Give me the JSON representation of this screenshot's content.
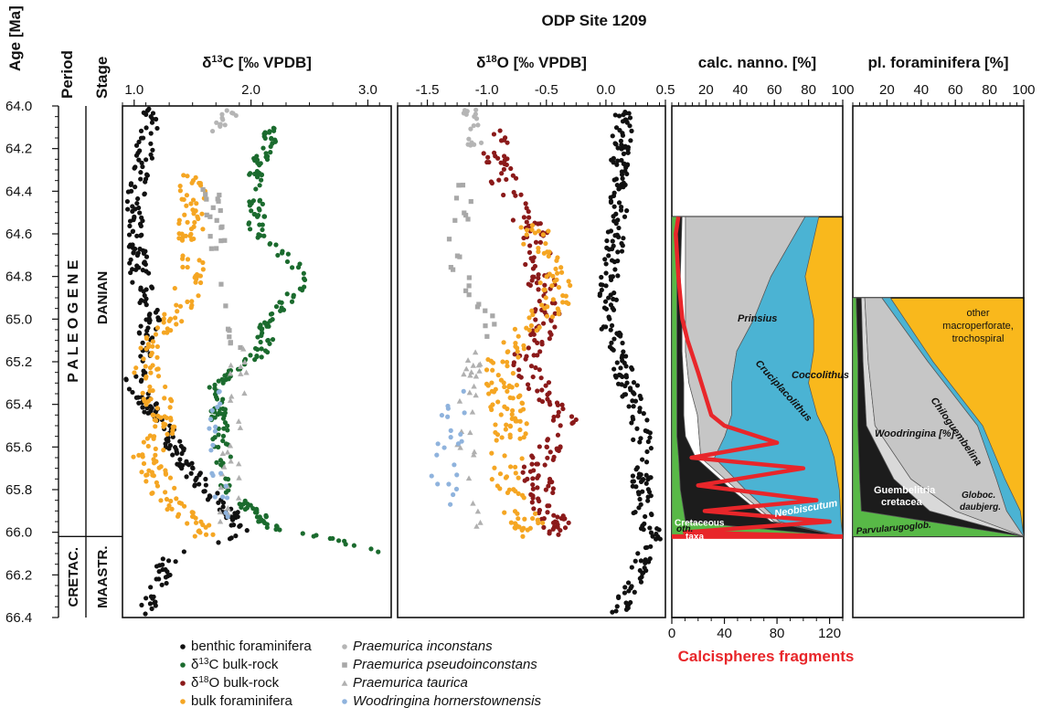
{
  "chart_data": {
    "type": "scatter",
    "title": "ODP Site 1209",
    "y_axis": {
      "label": "Age [Ma]",
      "range": [
        64.0,
        66.4
      ],
      "ticks": [
        "64.0",
        "64.2",
        "64.4",
        "64.6",
        "64.8",
        "65.0",
        "65.2",
        "65.4",
        "65.6",
        "65.8",
        "66.0",
        "66.2",
        "66.4"
      ],
      "boundary_age": 66.02
    },
    "period_header": "Period",
    "stage_header": "Stage",
    "periods": [
      {
        "name": "P A L E O G E N E",
        "from": 64.0,
        "to": 66.02
      },
      {
        "name": "CRETAC.",
        "from": 66.02,
        "to": 66.4
      }
    ],
    "stages": [
      {
        "name": "DANIAN",
        "from": 64.0,
        "to": 66.02
      },
      {
        "name": "MAASTR.",
        "from": 66.02,
        "to": 66.4
      }
    ],
    "panels": [
      {
        "id": "d13c",
        "header": "δ13C [‰ VPDB]",
        "range": [
          0.9,
          3.2
        ],
        "ticks": [
          "1.0",
          "2.0",
          "3.0"
        ],
        "series": [
          {
            "name": "benthic foraminifera",
            "color": "#111111",
            "marker": "circle",
            "trend": [
              [
                64.0,
                1.15
              ],
              [
                64.5,
                1.0
              ],
              [
                64.8,
                1.05
              ],
              [
                65.0,
                1.15
              ],
              [
                65.3,
                1.0
              ],
              [
                65.55,
                1.3
              ],
              [
                65.7,
                1.45
              ],
              [
                65.9,
                1.8
              ],
              [
                66.02,
                1.95
              ],
              [
                66.1,
                1.3
              ],
              [
                66.4,
                1.1
              ]
            ],
            "spread": 0.08,
            "range": [
              64.0,
              66.4
            ]
          },
          {
            "name": "δ13C bulk-rock",
            "color": "#1b6b2e",
            "marker": "circle",
            "trend": [
              [
                64.1,
                2.2
              ],
              [
                64.3,
                2.05
              ],
              [
                64.6,
                2.05
              ],
              [
                64.8,
                2.5
              ],
              [
                65.0,
                2.15
              ],
              [
                65.15,
                2.1
              ],
              [
                65.3,
                1.7
              ],
              [
                65.6,
                1.75
              ],
              [
                65.8,
                1.8
              ],
              [
                65.98,
                2.2
              ],
              [
                66.02,
                2.6
              ],
              [
                66.1,
                3.1
              ]
            ],
            "spread": 0.07,
            "range": [
              64.1,
              66.1
            ]
          },
          {
            "name": "bulk foraminifera",
            "color": "#f5a623",
            "marker": "circle",
            "trend": [
              [
                64.3,
                1.5
              ],
              [
                64.6,
                1.5
              ],
              [
                64.9,
                1.45
              ],
              [
                65.1,
                1.2
              ],
              [
                65.25,
                1.1
              ],
              [
                65.5,
                1.3
              ],
              [
                65.65,
                1.1
              ],
              [
                65.85,
                1.3
              ],
              [
                66.0,
                1.6
              ]
            ],
            "spread": 0.12,
            "range": [
              64.3,
              66.02
            ]
          },
          {
            "name": "Praemurica inconstans",
            "color": "#b5b5b5",
            "marker": "circle",
            "trend": [
              [
                64.0,
                1.85
              ],
              [
                64.1,
                1.75
              ]
            ],
            "spread": 0.08,
            "range": [
              64.0,
              64.12
            ]
          },
          {
            "name": "Praemurica pseudoinconstans",
            "color": "#a8a8a8",
            "marker": "square",
            "trend": [
              [
                64.3,
                1.65
              ],
              [
                64.8,
                1.75
              ],
              [
                65.1,
                1.85
              ]
            ],
            "spread": 0.08,
            "range": [
              64.3,
              65.15
            ]
          },
          {
            "name": "Praemurica taurica",
            "color": "#b0b0b0",
            "marker": "triangle",
            "trend": [
              [
                65.1,
                1.9
              ],
              [
                65.5,
                1.85
              ],
              [
                66.0,
                1.8
              ]
            ],
            "spread": 0.08,
            "range": [
              65.1,
              66.0
            ]
          },
          {
            "name": "Woodringina hornerstownensis",
            "color": "#8fb3dd",
            "marker": "circle",
            "trend": [
              [
                65.3,
                1.7
              ],
              [
                65.6,
                1.7
              ],
              [
                65.9,
                1.75
              ]
            ],
            "spread": 0.06,
            "range": [
              65.3,
              65.95
            ]
          }
        ]
      },
      {
        "id": "d18o",
        "header": "δ18O [‰ VPDB]",
        "range": [
          -1.75,
          0.5
        ],
        "ticks": [
          "-1.5",
          "-1.0",
          "-0.5",
          "0.0",
          "0.5"
        ],
        "series": [
          {
            "name": "benthic foraminifera",
            "color": "#111111",
            "marker": "circle",
            "trend": [
              [
                64.0,
                0.15
              ],
              [
                64.5,
                0.1
              ],
              [
                65.0,
                0.0
              ],
              [
                65.5,
                0.3
              ],
              [
                65.9,
                0.3
              ],
              [
                66.02,
                0.4
              ],
              [
                66.2,
                0.25
              ],
              [
                66.4,
                0.1
              ]
            ],
            "spread": 0.08,
            "range": [
              64.0,
              66.4
            ]
          },
          {
            "name": "δ18O bulk-rock",
            "color": "#8b1a1a",
            "marker": "circle",
            "trend": [
              [
                64.1,
                -0.95
              ],
              [
                64.4,
                -0.85
              ],
              [
                64.6,
                -0.6
              ],
              [
                64.8,
                -0.55
              ],
              [
                65.0,
                -0.5
              ],
              [
                65.2,
                -0.7
              ],
              [
                65.5,
                -0.3
              ],
              [
                65.7,
                -0.6
              ],
              [
                65.9,
                -0.5
              ],
              [
                66.02,
                -0.35
              ]
            ],
            "spread": 0.12,
            "range": [
              64.1,
              66.02
            ]
          },
          {
            "name": "bulk foraminifera",
            "color": "#f5a623",
            "marker": "circle",
            "trend": [
              [
                64.6,
                -0.6
              ],
              [
                64.9,
                -0.4
              ],
              [
                65.2,
                -0.9
              ],
              [
                65.5,
                -0.8
              ],
              [
                65.8,
                -0.85
              ],
              [
                66.0,
                -0.6
              ]
            ],
            "spread": 0.14,
            "range": [
              64.55,
              66.02
            ]
          },
          {
            "name": "Praemurica inconstans",
            "color": "#b5b5b5",
            "marker": "circle",
            "trend": [
              [
                64.0,
                -1.15
              ],
              [
                64.2,
                -1.1
              ]
            ],
            "spread": 0.06,
            "range": [
              64.0,
              64.2
            ]
          },
          {
            "name": "Praemurica pseudoinconstans",
            "color": "#a8a8a8",
            "marker": "square",
            "trend": [
              [
                64.3,
                -1.15
              ],
              [
                64.7,
                -1.3
              ],
              [
                65.05,
                -0.95
              ]
            ],
            "spread": 0.08,
            "range": [
              64.3,
              65.1
            ]
          },
          {
            "name": "Praemurica taurica",
            "color": "#b0b0b0",
            "marker": "triangle",
            "trend": [
              [
                65.1,
                -1.1
              ],
              [
                65.5,
                -1.2
              ],
              [
                66.0,
                -1.05
              ]
            ],
            "spread": 0.08,
            "range": [
              65.1,
              66.0
            ]
          },
          {
            "name": "Woodringina hornerstownensis",
            "color": "#8fb3dd",
            "marker": "circle",
            "trend": [
              [
                65.3,
                -1.3
              ],
              [
                65.6,
                -1.3
              ],
              [
                65.9,
                -1.4
              ],
              [
                66.02,
                -1.2
              ]
            ],
            "spread": 0.12,
            "range": [
              65.3,
              66.02
            ]
          }
        ]
      }
    ],
    "nanno": {
      "header": "calc. nanno. [%]",
      "ticks": [
        "20",
        "40",
        "60",
        "80",
        "100"
      ],
      "range": [
        0,
        100
      ],
      "ages": [
        64.52,
        64.8,
        65.0,
        65.15,
        65.3,
        65.45,
        65.55,
        65.65,
        65.8,
        65.95,
        66.02
      ],
      "cretaceous_taxa": [
        3,
        3,
        3,
        3,
        3,
        3,
        3,
        4,
        5,
        8,
        100
      ],
      "neobiscutum": [
        3,
        2,
        3,
        3,
        4,
        4,
        5,
        10,
        30,
        50,
        0
      ],
      "others": [
        2,
        3,
        2,
        2,
        3,
        8,
        8,
        3,
        3,
        2,
        0
      ],
      "prinsius": [
        70,
        50,
        40,
        30,
        25,
        20,
        15,
        8,
        5,
        3,
        0
      ],
      "cruciplacolithus": [
        8,
        20,
        35,
        45,
        45,
        50,
        60,
        70,
        55,
        36,
        0
      ],
      "calcisphere_axis_label": "Calcispheres fragments",
      "calcisphere_ticks": [
        "0",
        "40",
        "80",
        "120"
      ],
      "calcisphere_range": [
        0,
        130
      ],
      "calcisphere_ages": [
        64.52,
        64.6,
        64.8,
        65.0,
        65.1,
        65.25,
        65.35,
        65.45,
        65.5,
        65.58,
        65.65,
        65.7,
        65.78,
        65.85,
        65.9,
        65.95,
        66.0,
        66.02
      ],
      "calcisphere_values": [
        5,
        3,
        5,
        8,
        12,
        20,
        25,
        30,
        40,
        80,
        15,
        100,
        20,
        110,
        25,
        120,
        10,
        130
      ],
      "labels": {
        "prinsius": "Prinsius",
        "coccolithus": "Coccolithus",
        "cruciplacolithus": "Cruciplacolithus",
        "others": "oth.",
        "neobiscutum": "Neobiscutum",
        "cretaceous1": "Cretaceous",
        "cretaceous2": "taxa"
      }
    },
    "forams": {
      "header": "pl. foraminifera [%]",
      "ticks": [
        "20",
        "40",
        "60",
        "80",
        "100"
      ],
      "range": [
        0,
        100
      ],
      "ages": [
        64.9,
        65.2,
        65.5,
        65.75,
        65.9,
        66.02
      ],
      "parvularugoglobigerina": [
        2,
        3,
        3,
        4,
        5,
        100
      ],
      "guembelitria": [
        3,
        3,
        5,
        20,
        40,
        0
      ],
      "globoconusa": [
        2,
        3,
        5,
        10,
        15,
        0
      ],
      "woodringina": [
        10,
        35,
        60,
        50,
        30,
        0
      ],
      "chiloguembelina": [
        5,
        3,
        3,
        5,
        8,
        0
      ],
      "labels": {
        "other1": "other",
        "other2": "macroperforate,",
        "other3": "trochospiral",
        "chiloguembelina": "Chiloguembelina",
        "woodringina": "Woodringina [%]",
        "guembelitria1": "Guembelitria",
        "guembelitria2": "cretacea",
        "globoconusa1": "Globoc.",
        "globoconusa2": "daubjerg.",
        "parvularugoglobigerina": "Parvularugoglob."
      }
    },
    "legend": {
      "left": [
        {
          "label": "benthic foraminifera",
          "color": "#111111",
          "marker": "circle"
        },
        {
          "label": "δ13C bulk-rock",
          "color": "#1b6b2e",
          "marker": "circle"
        },
        {
          "label": "δ18O bulk-rock",
          "color": "#8b1a1a",
          "marker": "circle"
        },
        {
          "label": "bulk foraminifera",
          "color": "#f5a623",
          "marker": "circle"
        }
      ],
      "right": [
        {
          "label": "Praemurica inconstans",
          "color": "#b5b5b5",
          "marker": "circle"
        },
        {
          "label": "Praemurica pseudoinconstans",
          "color": "#a8a8a8",
          "marker": "square"
        },
        {
          "label": "Praemurica taurica",
          "color": "#b0b0b0",
          "marker": "triangle"
        },
        {
          "label": "Woodringina hornerstownensis",
          "color": "#8fb3dd",
          "marker": "circle"
        }
      ]
    },
    "colors": {
      "coccolithus": "#f9b81c",
      "cruciplacolithus": "#4bb3d3",
      "prinsius": "#c6c6c6",
      "others": "#ffffff",
      "neobiscutum": "#1c1c1c",
      "cretaceous": "#58b947",
      "calcispheres": "#e8262a",
      "chiloguembelina": "#4bb3d3"
    }
  }
}
